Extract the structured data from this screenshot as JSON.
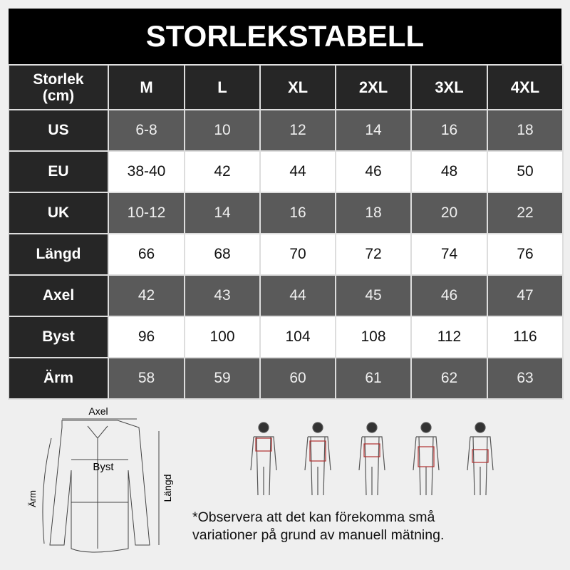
{
  "title": "STORLEKSTABELL",
  "table": {
    "corner": [
      "Storlek",
      "(cm)"
    ],
    "sizes": [
      "M",
      "L",
      "XL",
      "2XL",
      "3XL",
      "4XL"
    ],
    "rows": [
      {
        "label": "US",
        "values": [
          "6-8",
          "10",
          "12",
          "14",
          "16",
          "18"
        ]
      },
      {
        "label": "EU",
        "values": [
          "38-40",
          "42",
          "44",
          "46",
          "48",
          "50"
        ]
      },
      {
        "label": "UK",
        "values": [
          "10-12",
          "14",
          "16",
          "18",
          "20",
          "22"
        ]
      },
      {
        "label": "Längd",
        "values": [
          "66",
          "68",
          "70",
          "72",
          "74",
          "76"
        ]
      },
      {
        "label": "Axel",
        "values": [
          "42",
          "43",
          "44",
          "45",
          "46",
          "47"
        ]
      },
      {
        "label": "Byst",
        "values": [
          "96",
          "100",
          "104",
          "108",
          "112",
          "116"
        ]
      },
      {
        "label": "Ärm",
        "values": [
          "58",
          "59",
          "60",
          "61",
          "62",
          "63"
        ]
      }
    ]
  },
  "diagram": {
    "axel": "Axel",
    "byst": "Byst",
    "arm": "Ärm",
    "langd": "Längd"
  },
  "note": [
    "*Observera att det kan förekomma små",
    "variationer på grund av manuell mätning."
  ],
  "colors": {
    "header": "#262626",
    "gray_row": "#5a5a5a",
    "white_row": "#ffffff",
    "accent": "#b03030"
  }
}
